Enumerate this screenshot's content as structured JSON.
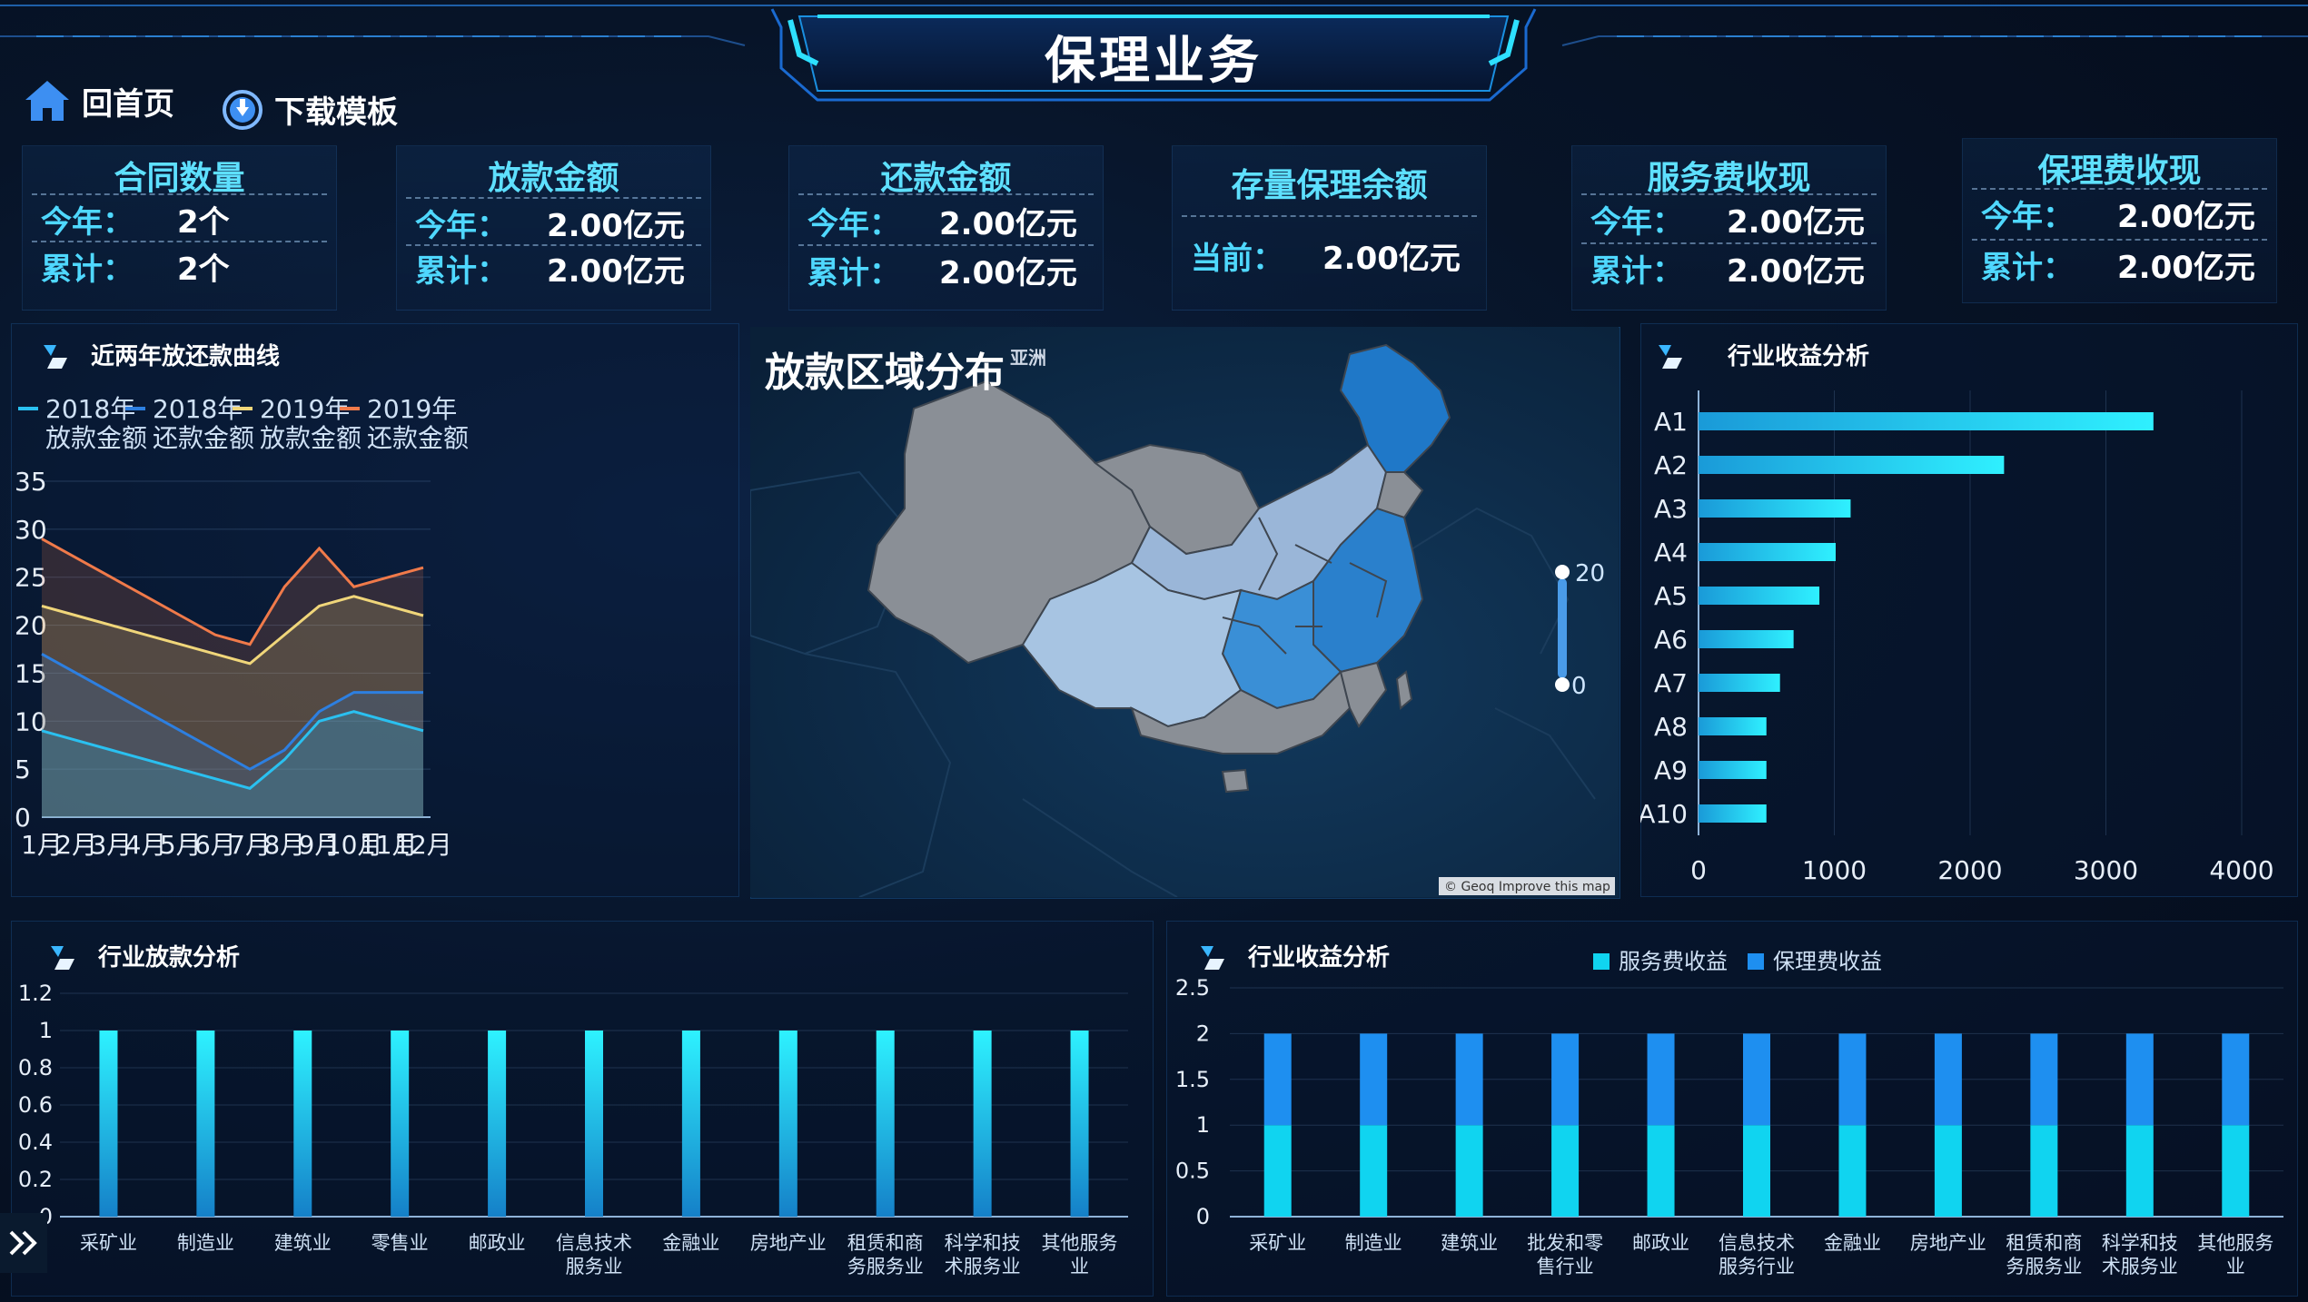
{
  "header": {
    "title": "保理业务"
  },
  "nav": [
    {
      "label": "回首页",
      "icon": "home-icon"
    },
    {
      "label": "下载模板",
      "icon": "download-icon"
    }
  ],
  "cards": [
    {
      "title": "合同数量",
      "rows": [
        {
          "k": "今年：",
          "v": "2个"
        },
        {
          "k": "累计：",
          "v": "2个"
        }
      ]
    },
    {
      "title": "放款金额",
      "rows": [
        {
          "k": "今年：",
          "v": "2.00亿元"
        },
        {
          "k": "累计：",
          "v": "2.00亿元"
        }
      ]
    },
    {
      "title": "还款金额",
      "rows": [
        {
          "k": "今年：",
          "v": "2.00亿元"
        },
        {
          "k": "累计：",
          "v": "2.00亿元"
        }
      ]
    },
    {
      "title": "存量保理余额",
      "rows": [
        {
          "k": "当前：",
          "v": "2.00亿元"
        }
      ]
    },
    {
      "title": "服务费收现",
      "rows": [
        {
          "k": "今年：",
          "v": "2.00亿元"
        },
        {
          "k": "累计：",
          "v": "2.00亿元"
        }
      ]
    },
    {
      "title": "保理费收现",
      "rows": [
        {
          "k": "今年：",
          "v": "2.00亿元"
        },
        {
          "k": "累计：",
          "v": "2.00亿元"
        }
      ]
    }
  ],
  "panels": {
    "curve_title": "近两年放还款曲线",
    "map_title": "放款区域分布",
    "map_subtitle": "亚洲",
    "map_attribution": "© Geoq Improve this map",
    "income_title": "行业收益分析",
    "loan_title": "行业放款分析",
    "income2_title": "行业收益分析"
  },
  "colors": {
    "accent": "#4fd8ff",
    "bar": "#24d8ee",
    "service": "#10d4f0",
    "factoring": "#1e8ff0"
  },
  "chart_data": [
    {
      "type": "area",
      "categories": [
        "1月",
        "2月",
        "3月",
        "4月",
        "5月",
        "6月",
        "7月",
        "8月",
        "9月",
        "10月",
        "11月",
        "12月"
      ],
      "ylim": [
        0,
        35
      ],
      "yticks": [
        0,
        5,
        10,
        15,
        20,
        25,
        30,
        35
      ],
      "legend_position": "top",
      "series": [
        {
          "name": "2018年放款金额",
          "color": "#2ac0f0",
          "values": [
            9,
            8,
            7,
            6,
            5,
            4,
            3,
            6,
            10,
            11,
            10,
            9
          ]
        },
        {
          "name": "2018年还款金额",
          "color": "#2d7fe0",
          "values": [
            17,
            15,
            13,
            11,
            9,
            7,
            5,
            7,
            11,
            13,
            13,
            13
          ]
        },
        {
          "name": "2019年放款金额",
          "color": "#f0d67a",
          "values": [
            22,
            21,
            20,
            19,
            18,
            17,
            16,
            19,
            22,
            23,
            22,
            21
          ]
        },
        {
          "name": "2019年还款金额",
          "color": "#f07a4a",
          "values": [
            29,
            27,
            25,
            23,
            21,
            19,
            18,
            24,
            28,
            24,
            25,
            26
          ]
        }
      ]
    },
    {
      "type": "heatmap",
      "title": "放款区域分布",
      "visual_map": {
        "min": 0,
        "max": 20,
        "min_label": "0",
        "max_label": "20"
      }
    },
    {
      "type": "bar",
      "orientation": "horizontal",
      "categories": [
        "A1",
        "A2",
        "A3",
        "A4",
        "A5",
        "A6",
        "A7",
        "A8",
        "A9",
        "A10"
      ],
      "values": [
        3350,
        2250,
        1120,
        1010,
        890,
        700,
        600,
        500,
        500,
        500
      ],
      "xlim": [
        0,
        4000
      ],
      "xticks": [
        0,
        1000,
        2000,
        3000,
        4000
      ]
    },
    {
      "type": "bar",
      "categories": [
        "采矿业",
        "制造业",
        "建筑业",
        "零售业",
        "邮政业",
        "信息技术服务业",
        "金融业",
        "房地产业",
        "租赁和商务服务业",
        "科学和技术服务业",
        "其他服务业"
      ],
      "values": [
        1,
        1,
        1,
        1,
        1,
        1,
        1,
        1,
        1,
        1,
        1
      ],
      "ylim": [
        0,
        1.2
      ],
      "yticks": [
        "0",
        "0.2",
        "0.4",
        "0.6",
        "0.8",
        "1",
        "1.2"
      ]
    },
    {
      "type": "bar",
      "stacked": true,
      "categories": [
        "采矿业",
        "制造业",
        "建筑业",
        "批发和零售行业",
        "邮政业",
        "信息技术服务行业",
        "金融业",
        "房地产业",
        "租赁和商务服务业",
        "科学和技术服务业",
        "其他服务业"
      ],
      "ylim": [
        0,
        2.5
      ],
      "yticks": [
        "0",
        "0.5",
        "1",
        "1.5",
        "2",
        "2.5"
      ],
      "legend_position": "top",
      "series": [
        {
          "name": "服务费收益",
          "color": "#10d4f0",
          "values": [
            1,
            1,
            1,
            1,
            1,
            1,
            1,
            1,
            1,
            1,
            1
          ]
        },
        {
          "name": "保理费收益",
          "color": "#1e8ff0",
          "values": [
            1,
            1,
            1,
            1,
            1,
            1,
            1,
            1,
            1,
            1,
            1
          ]
        }
      ]
    }
  ]
}
